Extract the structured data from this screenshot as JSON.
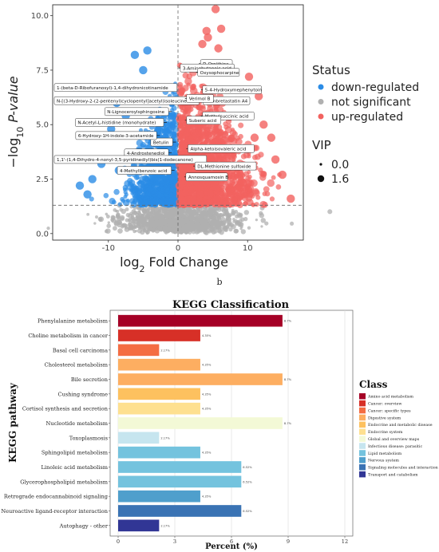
{
  "panel_b_label": "b",
  "chart_data": [
    {
      "type": "scatter",
      "title": "",
      "xlabel": "log2 Fold Change",
      "ylabel": "−log10 P-value",
      "xlim": [
        -18,
        18
      ],
      "ylim": [
        -0.3,
        10.5
      ],
      "x_ticks": [
        -10,
        0,
        10
      ],
      "y_ticks": [
        0.0,
        2.5,
        5.0,
        7.5,
        10.0
      ],
      "y_tick_labels": [
        "0.0",
        "2.5",
        "5.0",
        "7.5",
        "10.0"
      ],
      "thresholds": {
        "fold_change": 0,
        "p_value_line": 1.3
      },
      "legend": {
        "status_title": "Status",
        "status_items": [
          {
            "label": "down-regulated",
            "color": "#2b8ce6"
          },
          {
            "label": "not significant",
            "color": "#b0b0b0"
          },
          {
            "label": "up-regulated",
            "color": "#f2625f"
          }
        ],
        "vip_title": "VIP",
        "vip_items": [
          {
            "label": "0.0",
            "size": 1.6
          },
          {
            "label": "1.6",
            "size": 4.2
          }
        ]
      },
      "annotations": [
        {
          "label": "D-Ornithine",
          "x": 3.0,
          "y": 7.8
        },
        {
          "label": "3-Aminobutanoic acid",
          "x": 0.1,
          "y": 7.6
        },
        {
          "label": "Oxysophocarpine",
          "x": 2.6,
          "y": 7.4
        },
        {
          "label": "1-(beta-D-Ribofuranosyl)-1,4-dihydronicotinamide",
          "x": -0.6,
          "y": 6.7
        },
        {
          "label": "5-4-Hydroxymephenytoin",
          "x": 3.3,
          "y": 6.6
        },
        {
          "label": "N-[(3-Hydroxy-2-(2-pentenyl)cyclopentyl]acetyl)isoleucine",
          "x": -1.5,
          "y": 6.1
        },
        {
          "label": "Combretastatin A4",
          "x": 3.4,
          "y": 6.1
        },
        {
          "label": "Verimol B",
          "x": 1.0,
          "y": 6.2
        },
        {
          "label": "N-Lignoceroylsphingosine",
          "x": -0.9,
          "y": 5.6
        },
        {
          "label": "Methylsuccinic acid",
          "x": 3.3,
          "y": 5.4
        },
        {
          "label": "Suberic acid",
          "x": 1.0,
          "y": 5.2
        },
        {
          "label": "N-Acetyl-L-histidine (monohydrate)",
          "x": -1.6,
          "y": 5.1
        },
        {
          "label": "Betulin",
          "x": -0.3,
          "y": 4.2
        },
        {
          "label": "6-Hydroxy-1H-indole-3-acetamide",
          "x": -2.6,
          "y": 4.5
        },
        {
          "label": "Alpha-ketoisovaleric acid",
          "x": 1.2,
          "y": 3.9
        },
        {
          "label": "4-Androstenediol",
          "x": -0.9,
          "y": 3.7
        },
        {
          "label": "1,1'-(1,4-Dihydro-4-nonyl-3,5-pyridinediyl)bis(1-dodecanone)",
          "x": -1.4,
          "y": 3.4
        },
        {
          "label": "DL-Methionine sulfoxide",
          "x": 2.2,
          "y": 3.1
        },
        {
          "label": "4-Methylbenzoic acid",
          "x": -0.5,
          "y": 2.9
        },
        {
          "label": "Annosquamosin B",
          "x": 0.9,
          "y": 2.6
        }
      ],
      "highlight_points": [
        {
          "x": -6.2,
          "y": 8.2,
          "status": "down-regulated"
        },
        {
          "x": -5.0,
          "y": 7.5,
          "status": "down-regulated"
        },
        {
          "x": -4.4,
          "y": 8.4,
          "status": "down-regulated"
        },
        {
          "x": -8.8,
          "y": 6.0,
          "status": "down-regulated"
        },
        {
          "x": -7.5,
          "y": 5.4,
          "status": "down-regulated"
        },
        {
          "x": -9.6,
          "y": 4.8,
          "status": "down-regulated"
        },
        {
          "x": -12.3,
          "y": 2.5,
          "status": "down-regulated"
        },
        {
          "x": -14.1,
          "y": 2.2,
          "status": "down-regulated"
        },
        {
          "x": -11.0,
          "y": 3.2,
          "status": "down-regulated"
        },
        {
          "x": -13.0,
          "y": 1.8,
          "status": "down-regulated"
        },
        {
          "x": -8.5,
          "y": 2.9,
          "status": "down-regulated"
        },
        {
          "x": 4.1,
          "y": 9.3,
          "status": "up-regulated"
        },
        {
          "x": 4.3,
          "y": 9.0,
          "status": "up-regulated"
        },
        {
          "x": 5.4,
          "y": 10.3,
          "status": "up-regulated"
        },
        {
          "x": 6.2,
          "y": 9.4,
          "status": "up-regulated"
        },
        {
          "x": 3.5,
          "y": 8.7,
          "status": "up-regulated"
        },
        {
          "x": 5.8,
          "y": 8.5,
          "status": "up-regulated"
        },
        {
          "x": 10.2,
          "y": 7.2,
          "status": "up-regulated"
        },
        {
          "x": 11.6,
          "y": 6.3,
          "status": "up-regulated"
        },
        {
          "x": 12.3,
          "y": 5.0,
          "status": "up-regulated"
        },
        {
          "x": 13.4,
          "y": 4.4,
          "status": "up-regulated"
        },
        {
          "x": 14.0,
          "y": 3.4,
          "status": "up-regulated"
        },
        {
          "x": 15.0,
          "y": 2.7,
          "status": "up-regulated"
        },
        {
          "x": 16.2,
          "y": 1.6,
          "status": "up-regulated"
        },
        {
          "x": 11.0,
          "y": 4.4,
          "status": "up-regulated"
        }
      ]
    },
    {
      "type": "bar",
      "orientation": "horizontal",
      "title": "KEGG Classification",
      "xlabel": "Percent (%)",
      "ylabel": "KEGG pathway",
      "xlim": [
        0,
        12
      ],
      "x_ticks": [
        0,
        3,
        6,
        9,
        12
      ],
      "categories": [
        "Phenylalanine metabolism",
        "Choline metabolism in cancer",
        "Basal cell carcinoma",
        "Cholesterol metabolism",
        "Bile secretion",
        "Cushing syndrome",
        "Cortisol synthesis and secretion",
        "Nucleotide metabolism",
        "Toxoplasmosis",
        "Sphingolipid metabolism",
        "Linoleic acid metabolism",
        "Glycerophospholipid metabolism",
        "Retrograde endocannabinoid signaling",
        "Neuroactive ligand-receptor interaction",
        "Autophagy - other"
      ],
      "values": [
        8.7,
        4.35,
        2.17,
        4.35,
        8.7,
        4.35,
        4.35,
        8.7,
        2.17,
        4.35,
        6.52,
        6.52,
        4.35,
        6.52,
        2.17
      ],
      "value_labels": [
        "8.7%",
        "4.35%",
        "2.17%",
        "4.35%",
        "8.7%",
        "4.35%",
        "4.35%",
        "8.7%",
        "2.17%",
        "4.35%",
        "6.52%",
        "6.52%",
        "4.35%",
        "6.52%",
        "2.17%"
      ],
      "bar_class": [
        "Amino acid metabolism",
        "Cancer: overview",
        "Cancer: specific types",
        "Digestive system",
        "Digestive system",
        "Endocrine and metabolic disease",
        "Endocrine system",
        "Global and overview maps",
        "Infectious disease: parasitic",
        "Lipid metabolism",
        "Lipid metabolism",
        "Lipid metabolism",
        "Nervous system",
        "Signaling molecules and interaction",
        "Transport and catabolism"
      ],
      "legend": {
        "title": "Class",
        "items": [
          {
            "label": "Amino acid metabolism",
            "color": "#a50026"
          },
          {
            "label": "Cancer: overview",
            "color": "#d73027"
          },
          {
            "label": "Cancer: specific types",
            "color": "#f46d43"
          },
          {
            "label": "Digestive system",
            "color": "#fdae61"
          },
          {
            "label": "Endocrine and metabolic disease",
            "color": "#fdc15f"
          },
          {
            "label": "Endocrine system",
            "color": "#fee090"
          },
          {
            "label": "Global and overview maps",
            "color": "#f3f9d6"
          },
          {
            "label": "Infectious disease: parasitic",
            "color": "#c6e5ef"
          },
          {
            "label": "Lipid metabolism",
            "color": "#74c3de"
          },
          {
            "label": "Nervous system",
            "color": "#4f9fcc"
          },
          {
            "label": "Signaling molecules and interaction",
            "color": "#3a73b4"
          },
          {
            "label": "Transport and catabolism",
            "color": "#313695"
          }
        ]
      }
    }
  ]
}
